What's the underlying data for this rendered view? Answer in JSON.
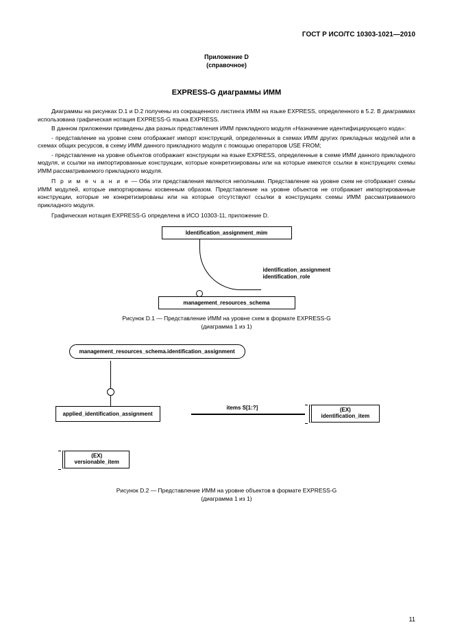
{
  "header": "ГОСТ Р ИСО/ТС 10303-1021—2010",
  "appendix": {
    "line1": "Приложение D",
    "line2": "(справочное)"
  },
  "title": "EXPRESS-G диаграммы ИММ",
  "p1": "Диаграммы на рисунках D.1 и D.2 получены из сокращенного листинга ИММ на языке EXPRESS, определенного в 5.2. В диаграммах использована графическая нотация EXPRESS-G языка EXPRESS.",
  "p2": "В данном приложении приведены два разных представления ИММ прикладного модуля «Назначение идентифицирующего кода»:",
  "p3": "- представление на уровне схем отображает импорт конструкций, определенных в схемах ИММ других прикладных модулей или в схемах общих ресурсов, в схему ИММ данного прикладного модуля с помощью операторов USE FROM;",
  "p4": "- представление на уровне объектов отображает конструкции на языке EXPRESS, определенные в схеме ИММ данного прикладного модуля, и ссылки на импортированные конструкции, которые конкретизированы или на которые имеются ссылки в конструкциях схемы ИММ рассматриваемого прикладного модуля.",
  "note_label": "П р и м е ч а н и е",
  "note": " — Оба эти представления являются неполными. Представление на уровне схем не отображает схемы ИММ модулей, которые импортированы косвенным образом. Представление на уровне объектов не отображает импортированные конструкции, которые не конкретизированы или на которые отсутствуют ссылки в конструкциях схемы ИММ рассматриваемого прикладного модуля.",
  "p5": "Графическая нотация EXPRESS-G определена в ИСО 10303-11, приложение D.",
  "d1": {
    "top_box": "Identification_assignment_mim",
    "arc_label1": "identification_assignment",
    "arc_label2": "identification_role",
    "bottom_box": "management_resources_schema"
  },
  "cap1_l1": "Рисунок D.1 — Представление ИММ на уровне схем в формате EXPRESS-G",
  "cap1_l2": "(диаграмма 1 из 1)",
  "d2": {
    "top": "management_resources_schema.identification_assignment",
    "left": "applied_identification_assignment",
    "edge": "items S[1:?]",
    "right_l1": "(EX)",
    "right_l2": "identification_item",
    "bottom_l1": "(EX)",
    "bottom_l2": "versionable_item"
  },
  "cap2_l1": "Рисунок D.2 — Представление ИММ на уровне объектов в формате EXPRESS-G",
  "cap2_l2": "(диаграмма 1 из 1)",
  "page": "11"
}
